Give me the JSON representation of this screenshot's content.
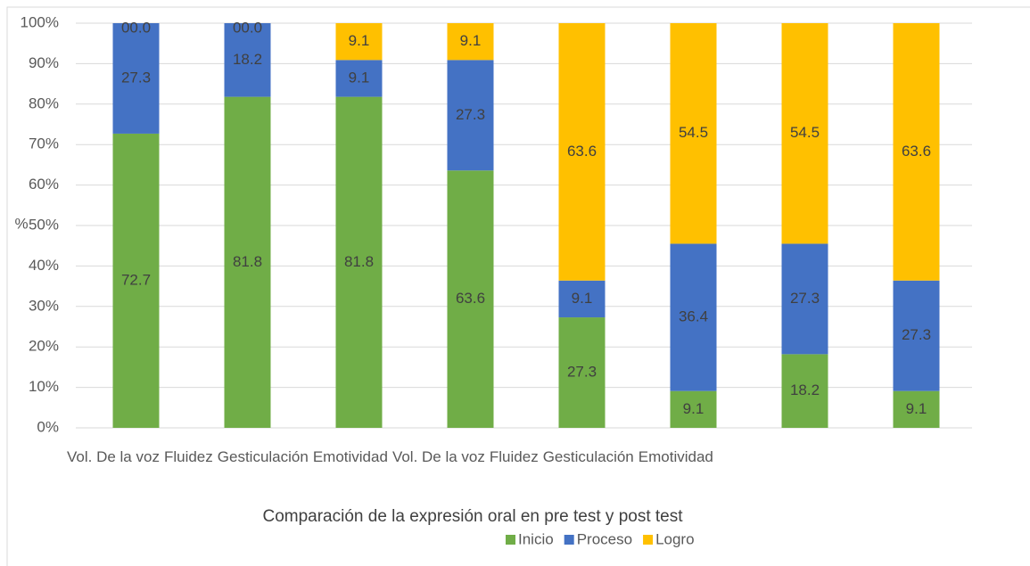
{
  "chart_data": {
    "type": "stacked_bar",
    "title": "Comparación de la expresión oral en pre test y post test",
    "y_label": "%",
    "categories": [
      "Vol. De la voz",
      "Fluidez",
      "Gesticulación",
      "Emotividad",
      "Vol. De la voz",
      "Fluidez",
      "Gesticulación",
      "Emotividad"
    ],
    "series": [
      {
        "name": "Inicio",
        "color": "#70ad47",
        "values": [
          72.7,
          81.8,
          81.8,
          63.6,
          27.3,
          9.1,
          18.2,
          9.1
        ]
      },
      {
        "name": "Proceso",
        "color": "#4472c4",
        "values": [
          27.3,
          18.2,
          9.1,
          27.3,
          9.1,
          36.4,
          27.3,
          27.3
        ]
      },
      {
        "name": "Logro",
        "color": "#ffc000",
        "values": [
          0,
          0,
          9.1,
          9.1,
          63.6,
          54.5,
          54.5,
          63.6
        ],
        "value_labels": [
          "00.0",
          "00.0",
          "9.1",
          "9.1",
          "63.6",
          "54.5",
          "54.5",
          "63.6"
        ]
      }
    ],
    "ylim": [
      0,
      100
    ],
    "yticks": [
      {
        "value": 0,
        "label": "0%"
      },
      {
        "value": 10,
        "label": "10%"
      },
      {
        "value": 20,
        "label": "20%"
      },
      {
        "value": 30,
        "label": "30%"
      },
      {
        "value": 40,
        "label": "40%"
      },
      {
        "value": 50,
        "label": "50%"
      },
      {
        "value": 60,
        "label": "60%"
      },
      {
        "value": 70,
        "label": "70%"
      },
      {
        "value": 80,
        "label": "80%"
      },
      {
        "value": 90,
        "label": "90%"
      },
      {
        "value": 100,
        "label": "100%"
      }
    ],
    "grid": true
  }
}
